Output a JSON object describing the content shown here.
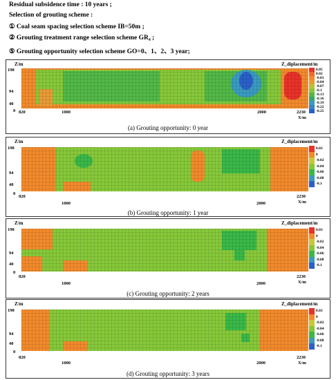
{
  "header": {
    "line1": "Residual  subsidence time : 10 years ;",
    "line2": "Selection of grouting scheme :",
    "line3": "① Coal seam spacing selection scheme IB=50m ;",
    "line4": "② Grouting treatment range selection scheme GR₄ ;",
    "line5": "⑤ Grouting opportunity selection scheme GO=0、1、2、3 year;"
  },
  "axis": {
    "z_label": "Z/m",
    "x_label": "X/m",
    "z_ticks": [
      "198",
      "94",
      "40",
      "0"
    ],
    "x_ticks": [
      "820",
      "1000",
      "2000",
      "2230"
    ],
    "colorbar_title": "Z_diplacement/m"
  },
  "panels": [
    {
      "caption": "(a) Grouting opportunity: 0 year",
      "colorbar": [
        "0.05",
        "0.02",
        "-0.01",
        "-0.04",
        "-0.07",
        "-0.1",
        "-0.13",
        "-0.16",
        "-0.19",
        "-0.22",
        "-0.25"
      ],
      "colors": [
        "#e8322a",
        "#f2672a",
        "#f28a2c",
        "#e99a36",
        "#b8c23a",
        "#86c83a",
        "#52b848",
        "#33a86a",
        "#3a9ac0",
        "#3a82cc",
        "#2a60c8"
      ]
    },
    {
      "caption": "(b) Grouting opportunity: 1 year",
      "colorbar": [
        "0.03",
        "0",
        "-0.02",
        "-0.04",
        "-0.06",
        "-0.08",
        "-0.1"
      ],
      "colors": [
        "#e8322a",
        "#f28a2c",
        "#c8c83a",
        "#86c83a",
        "#3ab848",
        "#3a9ac0",
        "#2a60c8"
      ]
    },
    {
      "caption": "(c) Grouting opportunity: 2 years",
      "colorbar": [
        "0.03",
        "0",
        "-0.02",
        "-0.04",
        "-0.06",
        "-0.08",
        "-0.1"
      ],
      "colors": [
        "#e8322a",
        "#f28a2c",
        "#c8c83a",
        "#86c83a",
        "#3ab848",
        "#3a9ac0",
        "#2a60c8"
      ]
    },
    {
      "caption": "(d) Grouting opportunity: 3 years",
      "colorbar": [
        "0.03",
        "0",
        "-0.02",
        "-0.04",
        "-0.06",
        "-0.08",
        "-0.1"
      ],
      "colors": [
        "#e8322a",
        "#f28a2c",
        "#c8c83a",
        "#86c83a",
        "#3ab848",
        "#3a9ac0",
        "#2a60c8"
      ]
    }
  ]
}
